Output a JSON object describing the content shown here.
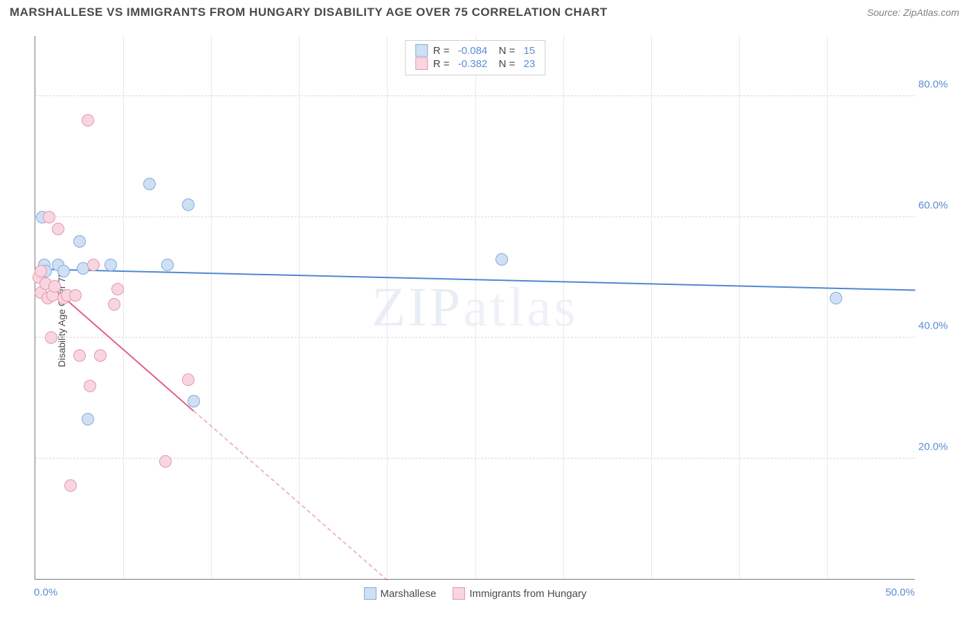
{
  "header": {
    "title": "MARSHALLESE VS IMMIGRANTS FROM HUNGARY DISABILITY AGE OVER 75 CORRELATION CHART",
    "source": "Source: ZipAtlas.com"
  },
  "watermark": {
    "bold": "ZIP",
    "rest": "atlas"
  },
  "chart": {
    "type": "scatter",
    "y_axis_title": "Disability Age Over 75",
    "xlim": [
      0,
      50
    ],
    "ylim": [
      0,
      90
    ],
    "x_ticks": [
      0,
      50
    ],
    "x_tick_labels": [
      "0.0%",
      "50.0%"
    ],
    "y_ticks": [
      20,
      40,
      60,
      80
    ],
    "y_tick_labels": [
      "20.0%",
      "40.0%",
      "60.0%",
      "80.0%"
    ],
    "minor_x_grid": [
      5,
      10,
      15,
      20,
      25,
      30,
      35,
      40,
      45
    ],
    "background_color": "#ffffff",
    "grid_color_h": "#d8d8d8",
    "grid_color_v": "#e8e8e8",
    "axis_label_color": "#5b8bd4",
    "marker_radius": 9,
    "marker_border_width": 1.5,
    "series": [
      {
        "key": "marshallese",
        "label": "Marshallese",
        "fill": "#cfe0f4",
        "stroke": "#7fa9db",
        "R": "-0.084",
        "N": "15",
        "trend": {
          "x1": 0,
          "y1": 51.5,
          "x2": 50,
          "y2": 48.0,
          "solid_until_x": 50,
          "color": "#4f86d1"
        },
        "points": [
          {
            "x": 0.4,
            "y": 60.0
          },
          {
            "x": 0.5,
            "y": 52.0
          },
          {
            "x": 0.6,
            "y": 51.0
          },
          {
            "x": 1.3,
            "y": 52.0
          },
          {
            "x": 1.6,
            "y": 51.0
          },
          {
            "x": 2.5,
            "y": 56.0
          },
          {
            "x": 2.7,
            "y": 51.5
          },
          {
            "x": 3.0,
            "y": 26.5
          },
          {
            "x": 4.3,
            "y": 52.0
          },
          {
            "x": 6.5,
            "y": 65.5
          },
          {
            "x": 7.5,
            "y": 52.0
          },
          {
            "x": 8.7,
            "y": 62.0
          },
          {
            "x": 9.0,
            "y": 29.5
          },
          {
            "x": 26.5,
            "y": 53.0
          },
          {
            "x": 45.5,
            "y": 46.5
          }
        ]
      },
      {
        "key": "hungary",
        "label": "Immigrants from Hungary",
        "fill": "#f7d6df",
        "stroke": "#e695ab",
        "R": "-0.382",
        "N": "23",
        "trend": {
          "x1": 0,
          "y1": 51.0,
          "x2": 20,
          "y2": 0.0,
          "solid_until_x": 9,
          "color": "#e15f84"
        },
        "points": [
          {
            "x": 0.2,
            "y": 50.0
          },
          {
            "x": 0.3,
            "y": 47.5
          },
          {
            "x": 0.3,
            "y": 51.0
          },
          {
            "x": 0.6,
            "y": 49.0
          },
          {
            "x": 0.7,
            "y": 46.5
          },
          {
            "x": 0.8,
            "y": 60.0
          },
          {
            "x": 0.9,
            "y": 40.0
          },
          {
            "x": 1.0,
            "y": 47.0
          },
          {
            "x": 1.1,
            "y": 48.5
          },
          {
            "x": 1.3,
            "y": 58.0
          },
          {
            "x": 1.6,
            "y": 46.5
          },
          {
            "x": 1.8,
            "y": 47.0
          },
          {
            "x": 2.0,
            "y": 15.5
          },
          {
            "x": 2.3,
            "y": 47.0
          },
          {
            "x": 2.5,
            "y": 37.0
          },
          {
            "x": 3.0,
            "y": 76.0
          },
          {
            "x": 3.1,
            "y": 32.0
          },
          {
            "x": 3.3,
            "y": 52.0
          },
          {
            "x": 3.7,
            "y": 37.0
          },
          {
            "x": 4.5,
            "y": 45.5
          },
          {
            "x": 4.7,
            "y": 48.0
          },
          {
            "x": 7.4,
            "y": 19.5
          },
          {
            "x": 8.7,
            "y": 33.0
          }
        ]
      }
    ]
  }
}
